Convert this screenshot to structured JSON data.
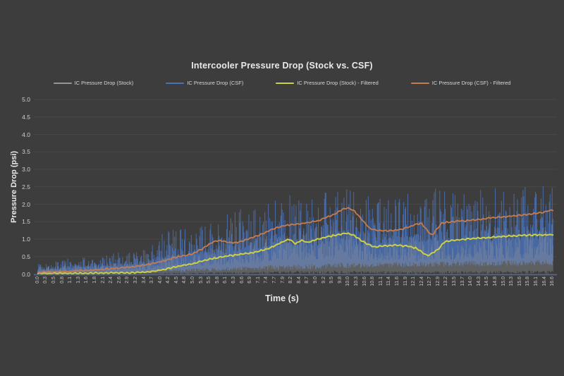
{
  "page": {
    "background": "#3d3d3d"
  },
  "chart": {
    "title": "Intercooler Pressure Drop (Stock vs. CSF)",
    "x_axis_title": "Time (s)",
    "y_axis_title": "Pressure Drop (psi)"
  },
  "chart_data": {
    "type": "line",
    "title": "Intercooler Pressure Drop (Stock vs. CSF)",
    "xlabel": "Time (s)",
    "ylabel": "Pressure Drop (psi)",
    "xlim": [
      0,
      16.6
    ],
    "ylim": [
      0,
      5
    ],
    "grid": "horizontal-only",
    "legend_position": "top",
    "background": "#3d3d3d",
    "gridline_color": "#484848",
    "axis_line_color": "#4a69a6",
    "y_ticks": [
      "0.0",
      "0.5",
      "1.0",
      "1.5",
      "2.0",
      "2.5",
      "3.0",
      "3.5",
      "4.0",
      "4.5",
      "5.0"
    ],
    "x_ticks": [
      "0.0",
      "0.3",
      "0.5",
      "0.8",
      "1.1",
      "1.3",
      "1.6",
      "1.8",
      "2.1",
      "2.4",
      "2.6",
      "2.9",
      "3.2",
      "3.4",
      "3.7",
      "4.0",
      "4.2",
      "4.5",
      "4.8",
      "5.0",
      "5.3",
      "5.5",
      "5.8",
      "6.1",
      "6.3",
      "6.6",
      "6.9",
      "7.1",
      "7.4",
      "7.7",
      "7.9",
      "8.2",
      "8.4",
      "8.7",
      "9.0",
      "9.2",
      "9.5",
      "9.8",
      "10.0",
      "10.3",
      "10.6",
      "10.8",
      "11.1",
      "11.4",
      "11.6",
      "11.9",
      "12.1",
      "12.4",
      "12.7",
      "12.9",
      "13.2",
      "13.5",
      "13.7",
      "14.0",
      "14.3",
      "14.5",
      "14.8",
      "15.0",
      "15.3",
      "15.6",
      "15.8",
      "16.1",
      "16.4",
      "16.6"
    ],
    "series": [
      {
        "name": "IC Pressure Drop (Stock)",
        "color": "#94969c",
        "style": "noisy",
        "opacity": 0.4,
        "seed": 13,
        "envelope": {
          "t": [
            0,
            1,
            2,
            3,
            3.5,
            4,
            4.5,
            5,
            5.5,
            6,
            6.5,
            7,
            7.5,
            8,
            8.5,
            9,
            9.5,
            9.8,
            10.2,
            10.7,
            11,
            11.5,
            12,
            12.5,
            13,
            13.5,
            14,
            14.5,
            15,
            15.5,
            16,
            16.6
          ],
          "upper": [
            0.2,
            0.25,
            0.3,
            0.35,
            0.4,
            0.5,
            0.6,
            0.65,
            0.75,
            0.85,
            0.95,
            1.05,
            1.15,
            1.25,
            1.3,
            1.3,
            1.38,
            1.45,
            1.3,
            1.15,
            1.2,
            1.25,
            1.2,
            1.1,
            1.3,
            1.3,
            1.35,
            1.35,
            1.4,
            1.4,
            1.42,
            1.45
          ]
        },
        "floor": {
          "t": [
            0,
            16.6
          ],
          "v": [
            0,
            0
          ]
        }
      },
      {
        "name": "IC Pressure Drop (CSF)",
        "color": "#4a72b8",
        "style": "noisy",
        "opacity": 0.82,
        "seed": 101,
        "envelope": {
          "t": [
            0,
            0.5,
            1.0,
            1.5,
            2.0,
            2.5,
            3.0,
            3.5,
            3.9,
            4.2,
            4.6,
            5.0,
            5.5,
            6.0,
            6.5,
            7.0,
            7.5,
            8.0,
            8.5,
            9.0,
            9.5,
            9.8,
            10.1,
            10.5,
            11.0,
            11.5,
            12.0,
            12.5,
            13.0,
            13.5,
            14.0,
            14.5,
            15.0,
            15.5,
            16.0,
            16.6
          ],
          "upper": [
            0.3,
            0.35,
            0.45,
            0.5,
            0.55,
            0.6,
            0.68,
            0.8,
            1.05,
            1.45,
            1.35,
            1.5,
            1.55,
            1.68,
            1.85,
            2.0,
            2.15,
            2.25,
            2.3,
            2.25,
            2.55,
            2.8,
            2.45,
            2.2,
            2.35,
            2.45,
            2.35,
            2.45,
            2.55,
            2.45,
            2.55,
            2.5,
            2.5,
            2.5,
            2.55,
            2.55
          ]
        },
        "floor": {
          "t": [
            0,
            4,
            8,
            12,
            16.6
          ],
          "v": [
            0.02,
            0.05,
            0.12,
            0.2,
            0.25
          ]
        }
      },
      {
        "name": "IC Pressure Drop (Stock) - Filtered",
        "color": "#cbd044",
        "style": "line",
        "width": 2,
        "keypoints": {
          "t": [
            0,
            1.0,
            2.0,
            3.0,
            3.6,
            4.0,
            4.5,
            5.0,
            5.5,
            6.0,
            6.5,
            7.0,
            7.4,
            7.7,
            7.95,
            8.1,
            8.3,
            8.5,
            8.7,
            8.9,
            9.1,
            9.4,
            9.7,
            9.95,
            10.2,
            10.5,
            10.8,
            11.1,
            11.5,
            11.9,
            12.2,
            12.55,
            12.9,
            13.1,
            13.4,
            13.8,
            14.2,
            14.6,
            15.0,
            15.5,
            16.0,
            16.6
          ],
          "v": [
            0.02,
            0.02,
            0.03,
            0.04,
            0.06,
            0.12,
            0.22,
            0.3,
            0.42,
            0.5,
            0.56,
            0.63,
            0.72,
            0.84,
            0.95,
            1.0,
            0.87,
            0.97,
            0.9,
            0.97,
            1.02,
            1.08,
            1.13,
            1.18,
            1.1,
            0.92,
            0.78,
            0.8,
            0.83,
            0.8,
            0.74,
            0.52,
            0.7,
            0.92,
            0.97,
            1.0,
            1.03,
            1.05,
            1.08,
            1.1,
            1.12,
            1.13
          ]
        }
      },
      {
        "name": "IC Pressure Drop (CSF) - Filtered",
        "color": "#c67c4e",
        "style": "line",
        "width": 1.8,
        "keypoints": {
          "t": [
            0,
            0.8,
            1.6,
            2.4,
            3.0,
            3.5,
            4.0,
            4.4,
            4.7,
            5.0,
            5.3,
            5.6,
            5.85,
            6.1,
            6.35,
            6.7,
            7.0,
            7.3,
            7.6,
            7.9,
            8.3,
            8.7,
            9.0,
            9.3,
            9.6,
            9.85,
            10.0,
            10.2,
            10.45,
            10.7,
            11.0,
            11.4,
            11.8,
            12.1,
            12.35,
            12.7,
            13.0,
            13.3,
            13.7,
            14.1,
            14.5,
            15.0,
            15.5,
            16.0,
            16.3,
            16.6
          ],
          "v": [
            0.05,
            0.07,
            0.11,
            0.16,
            0.2,
            0.27,
            0.36,
            0.48,
            0.52,
            0.58,
            0.72,
            0.9,
            0.97,
            0.92,
            0.89,
            0.98,
            1.07,
            1.18,
            1.3,
            1.38,
            1.43,
            1.47,
            1.52,
            1.62,
            1.73,
            1.87,
            1.9,
            1.8,
            1.55,
            1.3,
            1.24,
            1.24,
            1.3,
            1.4,
            1.46,
            1.1,
            1.45,
            1.5,
            1.52,
            1.55,
            1.6,
            1.64,
            1.68,
            1.73,
            1.77,
            1.84
          ]
        }
      }
    ]
  }
}
